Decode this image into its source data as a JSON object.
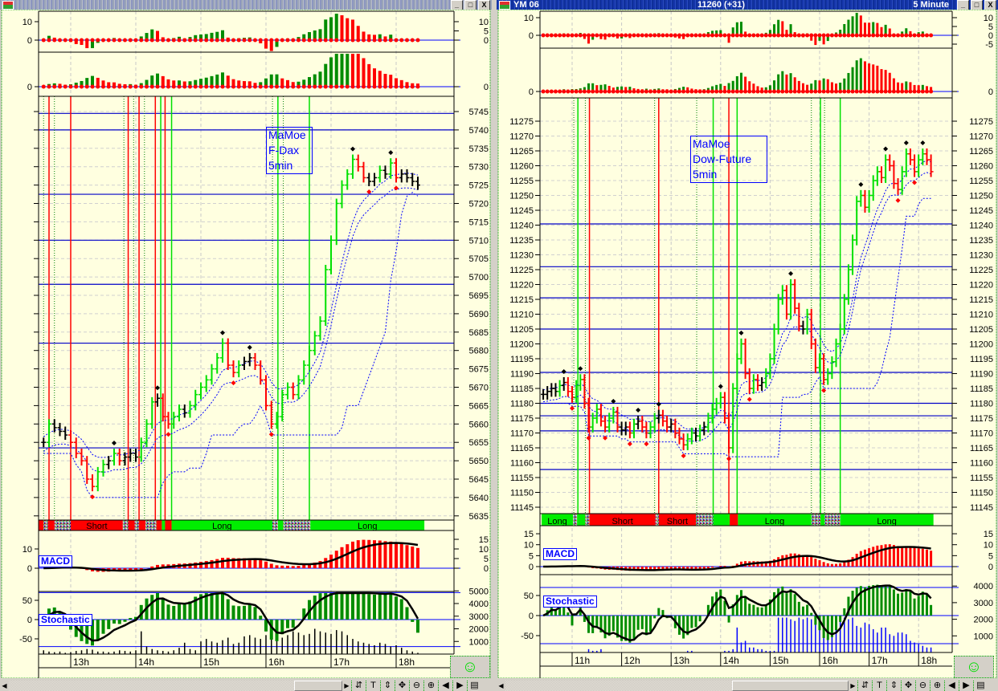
{
  "left_window": {
    "title_buttons": [
      "_",
      "□",
      "X"
    ],
    "annotation": [
      "MaMoe",
      "F-Dax",
      "5min"
    ],
    "macd_label": "MACD",
    "stoch_label": "Stochastic",
    "smiley": "☺",
    "toolbar": [
      {
        "icon": "sync-icon",
        "glyph": "⇵"
      },
      {
        "icon": "text-icon",
        "glyph": "T"
      },
      {
        "icon": "vertical-scale-icon",
        "glyph": "⇕"
      },
      {
        "icon": "move-icon",
        "glyph": "✥"
      },
      {
        "icon": "zoom-out-icon",
        "glyph": "⊖"
      },
      {
        "icon": "zoom-in-icon",
        "glyph": "⊕"
      },
      {
        "icon": "prev-icon",
        "glyph": "◀"
      },
      {
        "icon": "next-icon",
        "glyph": "▶"
      },
      {
        "icon": "calculator-icon",
        "glyph": "▤"
      }
    ]
  },
  "right_window": {
    "title": "YM 06",
    "price": "11260 (+31)",
    "interval": "5 Minute",
    "title_buttons": [
      "_",
      "□",
      "X"
    ],
    "annotation": [
      "MaMoe",
      "Dow-Future",
      "5min"
    ],
    "macd_label": "MACD",
    "stoch_label": "Stochastic",
    "smiley": "☺",
    "toolbar": [
      {
        "icon": "sync-icon",
        "glyph": "⇵"
      },
      {
        "icon": "text-icon",
        "glyph": "T"
      },
      {
        "icon": "vertical-scale-icon",
        "glyph": "⇕"
      },
      {
        "icon": "move-icon",
        "glyph": "✥"
      },
      {
        "icon": "zoom-out-icon",
        "glyph": "⊖"
      },
      {
        "icon": "zoom-in-icon",
        "glyph": "⊕"
      },
      {
        "icon": "prev-icon",
        "glyph": "◀"
      },
      {
        "icon": "next-icon",
        "glyph": "▶"
      },
      {
        "icon": "calculator-icon",
        "glyph": "▤"
      }
    ]
  },
  "colors": {
    "up": "#00e000",
    "down": "#ff0000",
    "neutral": "#000000",
    "level": "#0000c8",
    "background": "#ffffe0",
    "stoch": "#008c00"
  },
  "chart_data": [
    {
      "type": "bar",
      "instrument": "F-Dax",
      "start_time": "12:35",
      "bar_minutes": 5,
      "time_labels": [
        "13h",
        "14h",
        "15h",
        "16h",
        "17h",
        "18h"
      ],
      "ylim": [
        5635,
        5745
      ],
      "yticks": [
        5635,
        5640,
        5645,
        5650,
        5655,
        5660,
        5665,
        5670,
        5675,
        5680,
        5685,
        5690,
        5695,
        5700,
        5705,
        5710,
        5715,
        5720,
        5725,
        5730,
        5735,
        5740,
        5745
      ],
      "closes": [
        5655,
        5660,
        5659,
        5658,
        5657,
        5655,
        5652,
        5650,
        5645,
        5643,
        5647,
        5649,
        5650,
        5652,
        5650,
        5651,
        5652,
        5651,
        5655,
        5660,
        5666,
        5667,
        5662,
        5660,
        5662,
        5664,
        5663,
        5665,
        5668,
        5670,
        5672,
        5675,
        5678,
        5682,
        5676,
        5674,
        5676,
        5677,
        5678,
        5676,
        5672,
        5665,
        5660,
        5662,
        5668,
        5670,
        5668,
        5672,
        5676,
        5680,
        5684,
        5688,
        5702,
        5710,
        5720,
        5725,
        5728,
        5732,
        5730,
        5727,
        5726,
        5727,
        5729,
        5728,
        5731,
        5727,
        5728,
        5727,
        5726,
        5725
      ],
      "volume": [
        300,
        200,
        150,
        200,
        100,
        150,
        250,
        300,
        400,
        350,
        200,
        200,
        150,
        200,
        300,
        250,
        200,
        300,
        1800,
        600,
        400,
        300,
        250,
        200,
        300,
        500,
        900,
        400,
        300,
        1000,
        1200,
        1000,
        900,
        1100,
        1300,
        800,
        900,
        1400,
        1500,
        1300,
        1200,
        1500,
        1600,
        1400,
        1300,
        1500,
        1800,
        1700,
        1500,
        1600,
        2000,
        1800,
        1700,
        1600,
        1900,
        1800,
        1500,
        1200,
        1000,
        900,
        800,
        700,
        900,
        800,
        600,
        700,
        500,
        300,
        200,
        100
      ],
      "levels": [
        5744.5,
        5740,
        5722.5,
        5710,
        5698,
        5682,
        5653.5
      ],
      "signal_lines": [
        {
          "time": "12:35",
          "color": "green",
          "style": "dotted"
        },
        {
          "time": "12:40",
          "color": "red",
          "style": "solid"
        },
        {
          "time": "12:45",
          "color": "green",
          "style": "dotted"
        },
        {
          "time": "13:00",
          "color": "red",
          "style": "solid"
        },
        {
          "time": "13:49",
          "color": "green",
          "style": "dotted"
        },
        {
          "time": "13:53",
          "color": "red",
          "style": "solid"
        },
        {
          "time": "13:58",
          "color": "green",
          "style": "dotted"
        },
        {
          "time": "14:03",
          "color": "red",
          "style": "solid"
        },
        {
          "time": "14:08",
          "color": "green",
          "style": "dotted"
        },
        {
          "time": "14:18",
          "color": "red",
          "style": "solid"
        },
        {
          "time": "14:23",
          "color": "green",
          "style": "solid"
        },
        {
          "time": "14:27",
          "color": "red",
          "style": "solid"
        },
        {
          "time": "14:33",
          "color": "green",
          "style": "solid"
        },
        {
          "time": "16:06",
          "color": "green",
          "style": "dotted"
        },
        {
          "time": "16:11",
          "color": "green",
          "style": "solid"
        },
        {
          "time": "16:16",
          "color": "green",
          "style": "dotted"
        },
        {
          "time": "16:40",
          "color": "green",
          "style": "solid"
        }
      ],
      "signal_bar": [
        {
          "from": "12:30",
          "to": "12:35",
          "state": "short",
          "label": ""
        },
        {
          "from": "12:35",
          "to": "12:39",
          "state": "neutral",
          "label": ""
        },
        {
          "from": "12:39",
          "to": "12:45",
          "state": "short",
          "label": ""
        },
        {
          "from": "12:45",
          "to": "13:00",
          "state": "neutral",
          "label": ""
        },
        {
          "from": "13:00",
          "to": "13:48",
          "state": "short",
          "label": "Short"
        },
        {
          "from": "13:48",
          "to": "13:53",
          "state": "neutral",
          "label": ""
        },
        {
          "from": "13:53",
          "to": "13:59",
          "state": "short",
          "label": ""
        },
        {
          "from": "13:59",
          "to": "14:03",
          "state": "neutral",
          "label": ""
        },
        {
          "from": "14:03",
          "to": "14:09",
          "state": "short",
          "label": ""
        },
        {
          "from": "14:09",
          "to": "14:19",
          "state": "neutral",
          "label": ""
        },
        {
          "from": "14:19",
          "to": "14:24",
          "state": "short",
          "label": ""
        },
        {
          "from": "14:24",
          "to": "14:27",
          "state": "long",
          "label": ""
        },
        {
          "from": "14:27",
          "to": "14:33",
          "state": "short",
          "label": ""
        },
        {
          "from": "14:33",
          "to": "16:06",
          "state": "long",
          "label": "Long"
        },
        {
          "from": "16:06",
          "to": "16:11",
          "state": "neutral",
          "label": ""
        },
        {
          "from": "16:11",
          "to": "16:16",
          "state": "long",
          "label": ""
        },
        {
          "from": "16:16",
          "to": "16:41",
          "state": "neutral",
          "label": ""
        },
        {
          "from": "16:41",
          "to": "18:26",
          "state": "long",
          "label": "Long"
        }
      ],
      "osc1_axis": {
        "left": [
          "10",
          "0"
        ],
        "right": [
          "10",
          "5",
          "0"
        ]
      },
      "osc2_axis": {
        "left": [
          "0"
        ],
        "right": [
          "0"
        ]
      },
      "macd_axis": {
        "left": [
          "10",
          "0"
        ],
        "right": [
          "15",
          "10",
          "5",
          "0"
        ]
      },
      "stoch_axis": {
        "left": [
          "50",
          "0",
          "-50"
        ]
      },
      "volume_axis": {
        "right": [
          "5000",
          "4000",
          "3000",
          "2000",
          "1000"
        ]
      }
    },
    {
      "type": "bar",
      "instrument": "Dow-Future",
      "start_time": "10:25",
      "bar_minutes": 5,
      "time_labels": [
        "11h",
        "12h",
        "13h",
        "14h",
        "15h",
        "16h",
        "17h",
        "18h"
      ],
      "ylim": [
        11145,
        11275
      ],
      "yticks": [
        11145,
        11150,
        11155,
        11160,
        11165,
        11170,
        11175,
        11180,
        11185,
        11190,
        11195,
        11200,
        11205,
        11210,
        11215,
        11220,
        11225,
        11230,
        11235,
        11240,
        11245,
        11250,
        11255,
        11260,
        11265,
        11270,
        11275
      ],
      "closes": [
        11183,
        11184,
        11185,
        11184,
        11186,
        11187,
        11184,
        11182,
        11186,
        11188,
        11180,
        11172,
        11175,
        11178,
        11174,
        11172,
        11175,
        11177,
        11172,
        11171,
        11172,
        11170,
        11173,
        11174,
        11172,
        11170,
        11172,
        11175,
        11176,
        11174,
        11172,
        11173,
        11170,
        11168,
        11166,
        11168,
        11170,
        11169,
        11171,
        11172,
        11175,
        11178,
        11180,
        11182,
        11175,
        11165,
        11185,
        11195,
        11200,
        11190,
        11185,
        11188,
        11186,
        11187,
        11190,
        11195,
        11205,
        11215,
        11218,
        11210,
        11220,
        11212,
        11206,
        11205,
        11210,
        11200,
        11192,
        11195,
        11188,
        11190,
        11194,
        11200,
        11205,
        11215,
        11225,
        11235,
        11248,
        11250,
        11246,
        11250,
        11255,
        11258,
        11256,
        11262,
        11260,
        11254,
        11252,
        11258,
        11264,
        11262,
        11258,
        11262,
        11264,
        11262,
        11258
      ],
      "volume": [
        0,
        0,
        0,
        0,
        0,
        0,
        0,
        0,
        0,
        0,
        0,
        200,
        100,
        100,
        200,
        0,
        0,
        0,
        0,
        0,
        0,
        0,
        0,
        0,
        0,
        0,
        0,
        0,
        0,
        0,
        0,
        0,
        0,
        0,
        0,
        100,
        100,
        0,
        0,
        0,
        0,
        0,
        0,
        0,
        100,
        100,
        200,
        1500,
        600,
        700,
        300,
        300,
        200,
        200,
        100,
        100,
        100,
        2100,
        2100,
        2100,
        2000,
        1900,
        2100,
        2000,
        2100,
        2000,
        1700,
        1400,
        1200,
        1400,
        1600,
        1500,
        2000,
        2100,
        2000,
        2100,
        1600,
        1500,
        1800,
        1700,
        1400,
        1200,
        1500,
        1500,
        1100,
        1000,
        1200,
        1200,
        1100,
        700,
        600,
        500,
        400,
        300,
        300
      ],
      "levels": [
        11240.4,
        11226,
        11215.5,
        11205,
        11190.4,
        11180,
        11175.8,
        11170.7,
        11157.7
      ],
      "signal_lines": [
        {
          "time": "11:02",
          "color": "green",
          "style": "dotted"
        },
        {
          "time": "11:07",
          "color": "green",
          "style": "solid"
        },
        {
          "time": "11:16",
          "color": "green",
          "style": "dotted"
        },
        {
          "time": "11:21",
          "color": "red",
          "style": "solid"
        },
        {
          "time": "12:40",
          "color": "green",
          "style": "dotted"
        },
        {
          "time": "12:45",
          "color": "red",
          "style": "solid"
        },
        {
          "time": "13:31",
          "color": "green",
          "style": "dotted"
        },
        {
          "time": "13:51",
          "color": "green",
          "style": "solid"
        },
        {
          "time": "14:10",
          "color": "red",
          "style": "solid"
        },
        {
          "time": "14:20",
          "color": "green",
          "style": "solid"
        },
        {
          "time": "15:50",
          "color": "green",
          "style": "dotted"
        },
        {
          "time": "16:01",
          "color": "green",
          "style": "solid"
        },
        {
          "time": "16:06",
          "color": "green",
          "style": "dotted"
        },
        {
          "time": "16:25",
          "color": "green",
          "style": "solid"
        }
      ],
      "signal_bar": [
        {
          "from": "10:23",
          "to": "11:01",
          "state": "long",
          "label": "Long"
        },
        {
          "from": "11:01",
          "to": "11:06",
          "state": "neutral",
          "label": ""
        },
        {
          "from": "11:06",
          "to": "11:16",
          "state": "long",
          "label": ""
        },
        {
          "from": "11:16",
          "to": "11:21",
          "state": "neutral",
          "label": ""
        },
        {
          "from": "11:21",
          "to": "12:41",
          "state": "short",
          "label": "Short"
        },
        {
          "from": "12:41",
          "to": "12:45",
          "state": "neutral",
          "label": ""
        },
        {
          "from": "12:45",
          "to": "13:30",
          "state": "short",
          "label": "Short"
        },
        {
          "from": "13:30",
          "to": "13:51",
          "state": "neutral",
          "label": ""
        },
        {
          "from": "13:51",
          "to": "14:11",
          "state": "long",
          "label": ""
        },
        {
          "from": "14:11",
          "to": "14:21",
          "state": "short",
          "label": ""
        },
        {
          "from": "14:21",
          "to": "15:50",
          "state": "long",
          "label": "Long"
        },
        {
          "from": "15:50",
          "to": "16:01",
          "state": "neutral",
          "label": ""
        },
        {
          "from": "16:01",
          "to": "16:06",
          "state": "long",
          "label": ""
        },
        {
          "from": "16:06",
          "to": "16:25",
          "state": "neutral",
          "label": ""
        },
        {
          "from": "16:25",
          "to": "18:18",
          "state": "long",
          "label": "Long"
        }
      ],
      "osc1_axis": {
        "left": [
          "10",
          "0"
        ],
        "right": [
          "10",
          "5",
          "0",
          "-5"
        ]
      },
      "osc2_axis": {
        "left": [
          "0"
        ],
        "right": [
          "0"
        ]
      },
      "macd_axis": {
        "left": [
          "15",
          "10",
          "5",
          "0"
        ],
        "right": [
          "15",
          "10",
          "5",
          "0"
        ]
      },
      "stoch_axis": {
        "left": [
          "50",
          "0",
          "-50"
        ]
      },
      "volume_axis": {
        "right": [
          "4000",
          "3000",
          "2000",
          "1000"
        ]
      }
    }
  ]
}
